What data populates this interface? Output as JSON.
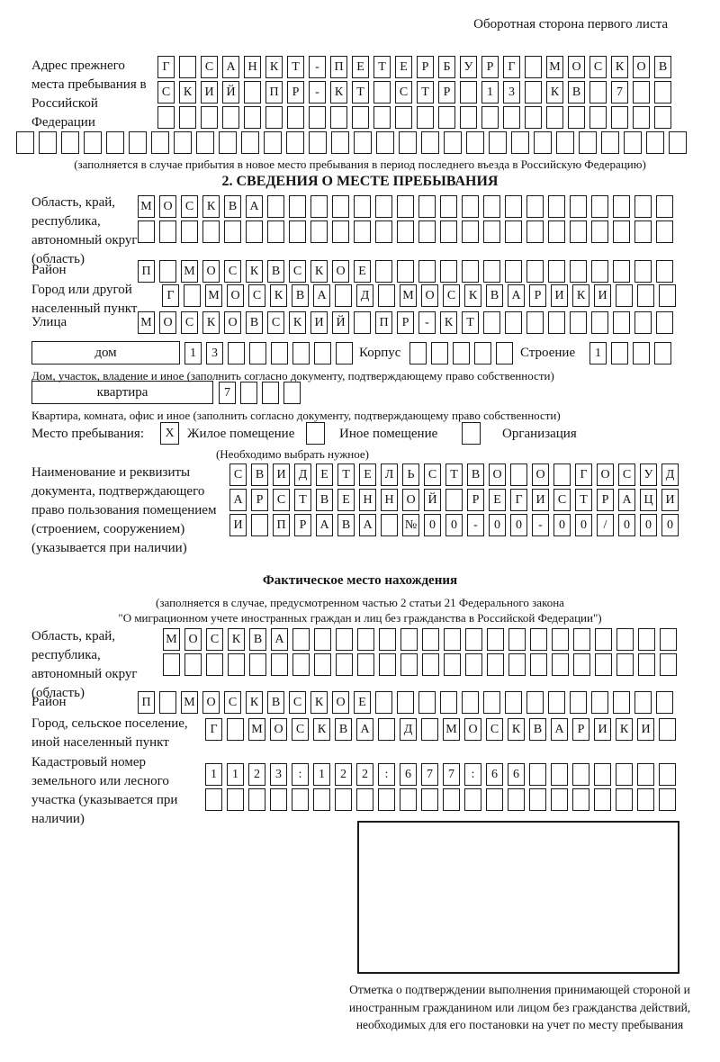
{
  "page_note": "Оборотная сторона первого листа",
  "prev_address": {
    "label": "Адрес прежнего места пребывания в Российской Федерации",
    "rows": [
      {
        "count": 24,
        "value": "Г САНКТ-ПЕТЕРБУРГ МОСКОВ"
      },
      {
        "count": 24,
        "value": "СКИЙ ПР-КТ СТР 13 КВ 7"
      },
      {
        "count": 24,
        "value": ""
      },
      {
        "count": 30,
        "value": ""
      }
    ],
    "caption": "(заполняется в случае прибытия в новое место пребывания в период последнего въезда в Российскую Федерацию)"
  },
  "section2": {
    "title": "2. СВЕДЕНИЯ О МЕСТЕ ПРЕБЫВАНИЯ",
    "oblast": {
      "label": "Область, край, республика, автономный округ (область)",
      "rows": [
        {
          "count": 25,
          "value": "МОСКВА"
        },
        {
          "count": 25,
          "value": ""
        }
      ]
    },
    "raion": {
      "label": "Район",
      "row": {
        "count": 25,
        "value": "П МОСКВСКОЕ"
      }
    },
    "gorod": {
      "label": "Город или другой населенный пункт",
      "row": {
        "count": 24,
        "value": "Г МОСКВА Д МОСКВАРИКИ"
      }
    },
    "ulitsa": {
      "label": "Улица",
      "row": {
        "count": 25,
        "value": "МОСКОВСКИЙ ПР-КТ"
      }
    },
    "dom": {
      "box_label": "дом",
      "row": {
        "count": 8,
        "value": "13"
      },
      "korpus_label": "Корпус",
      "korpus_row": {
        "count": 5,
        "value": ""
      },
      "stroenie_label": "Строение",
      "stroenie_row": {
        "count": 4,
        "value": "1"
      }
    },
    "dom_caption": "Дом, участок, владение и иное (заполнить согласно документу, подтверждающему право собственности)",
    "kvartira": {
      "box_label": "квартира",
      "row": {
        "count": 4,
        "value": "7"
      }
    },
    "kvartira_caption": "Квартира, комната, офис и иное (заполнить согласно документу, подтверждающему право собственности)",
    "mesto": {
      "label": "Место пребывания:",
      "options": [
        {
          "label": "Жилое помещение",
          "checked": "X"
        },
        {
          "label": "Иное помещение",
          "checked": ""
        },
        {
          "label": "Организация",
          "checked": ""
        }
      ],
      "note": "(Необходимо выбрать нужное)"
    },
    "document": {
      "label": "Наименование и реквизиты документа, подтверждающего право пользования помещением (строением, сооружением) (указывается при наличии)",
      "rows": [
        {
          "count": 21,
          "value": "СВИДЕТЕЛЬСТВО О ГОСУД"
        },
        {
          "count": 21,
          "value": "АРСТВЕННОЙ РЕГИСТРАЦИ"
        },
        {
          "count": 21,
          "value": "И ПРАВА №00-00-00/000"
        }
      ]
    }
  },
  "fact_location": {
    "title": "Фактическое место нахождения",
    "caption_line1": "(заполняется в случае, предусмотренном частью 2 статьи 21 Федерального закона",
    "caption_line2": "\"О миграционном учете иностранных граждан и лиц без гражданства в Российской Федерации\")",
    "oblast": {
      "label": "Область, край, республика, автономный округ (область)",
      "rows": [
        {
          "count": 24,
          "value": "МОСКВА"
        },
        {
          "count": 24,
          "value": ""
        }
      ]
    },
    "raion": {
      "label": "Район",
      "row": {
        "count": 25,
        "value": "П МОСКВСКОЕ"
      }
    },
    "gorod": {
      "label": "Город, сельское поселение, иной населенный пункт",
      "row": {
        "count": 22,
        "value": "Г МОСКВА Д МОСКВАРИКИ"
      }
    },
    "kadastr": {
      "label": "Кадастровый номер земельного или лесного участка (указывается при наличии)",
      "rows": [
        {
          "count": 22,
          "value": "1123:122:677:66"
        },
        {
          "count": 22,
          "value": ""
        }
      ]
    },
    "stamp_caption": "Отметка о подтверждении выполнения принимающей стороной и иностранным гражданином или лицом без гражданства действий, необходимых для его постановки на учет по месту пребывания"
  }
}
